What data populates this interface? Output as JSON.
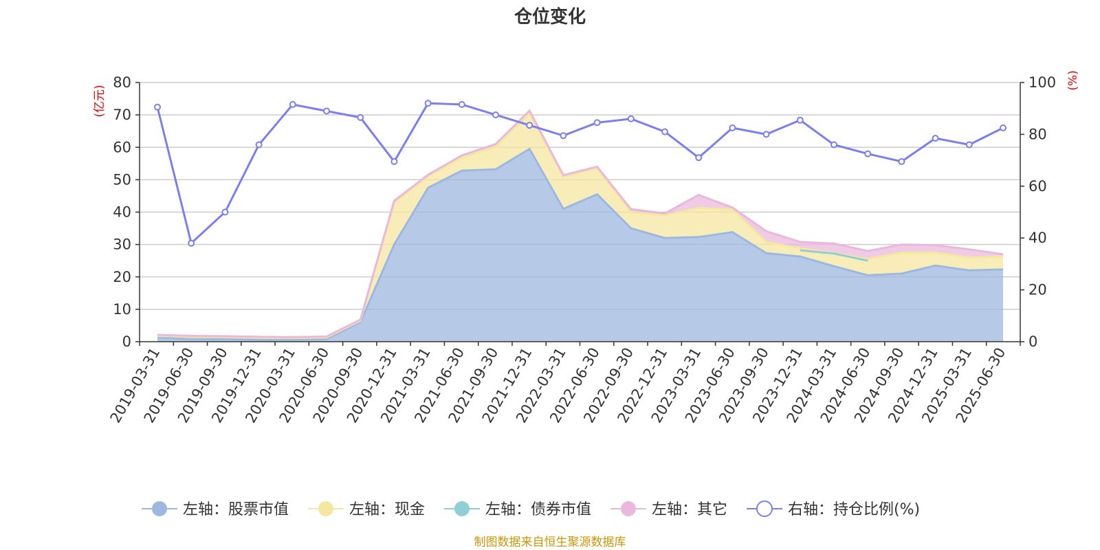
{
  "chart_data": {
    "type": "area",
    "title": "仓位变化",
    "x": [
      "2019-03-31",
      "2019-06-30",
      "2019-09-30",
      "2019-12-31",
      "2020-03-31",
      "2020-06-30",
      "2020-09-30",
      "2020-12-31",
      "2021-03-31",
      "2021-06-30",
      "2021-09-30",
      "2021-12-31",
      "2022-03-31",
      "2022-06-30",
      "2022-09-30",
      "2022-12-31",
      "2023-03-31",
      "2023-06-30",
      "2023-09-30",
      "2023-12-31",
      "2024-03-31",
      "2024-06-30",
      "2024-09-30",
      "2024-12-31",
      "2025-03-31",
      "2025-06-30"
    ],
    "left_axis": {
      "unit": "(亿元)",
      "ylim": [
        0,
        80
      ],
      "ticks": [
        "0",
        "10",
        "20",
        "30",
        "40",
        "50",
        "60",
        "70",
        "80"
      ]
    },
    "right_axis": {
      "unit": "(%)",
      "ylim": [
        0,
        100
      ],
      "ticks": [
        "0",
        "20",
        "40",
        "60",
        "80",
        "100"
      ]
    },
    "series": [
      {
        "name": "左轴：股票市值",
        "axis": "left",
        "stacked": true,
        "color": "#9db8e0",
        "values": [
          1.3,
          0.8,
          0.8,
          0.6,
          0.6,
          0.8,
          6.0,
          30.0,
          47.5,
          52.8,
          53.2,
          59.5,
          41.0,
          45.5,
          35.0,
          32.0,
          32.3,
          33.8,
          27.3,
          26.3,
          23.3,
          20.5,
          21.0,
          23.5,
          22.0,
          22.3
        ]
      },
      {
        "name": "左轴：现金",
        "axis": "left",
        "stacked": true,
        "color": "#f5e6a0",
        "values": [
          0.5,
          0.7,
          0.6,
          0.6,
          0.5,
          0.5,
          0.5,
          13.0,
          3.5,
          4.0,
          7.0,
          11.0,
          10.0,
          8.0,
          5.0,
          7.0,
          9.0,
          7.0,
          3.5,
          2.5,
          4.0,
          5.0,
          6.5,
          4.0,
          4.0,
          4.0
        ]
      },
      {
        "name": "左轴：债券市值",
        "axis": "left",
        "stacked": false,
        "color": "#8ecfd3",
        "values": [
          null,
          null,
          null,
          null,
          null,
          null,
          null,
          null,
          null,
          null,
          null,
          null,
          null,
          null,
          null,
          null,
          null,
          null,
          null,
          28.2,
          27.2,
          25.0,
          null,
          null,
          null,
          null
        ]
      },
      {
        "name": "左轴：其它",
        "axis": "left",
        "stacked": true,
        "color": "#e9b9dd",
        "values": [
          0.3,
          0.3,
          0.3,
          0.3,
          0.3,
          0.3,
          0.3,
          0.5,
          0.5,
          0.7,
          0.8,
          0.8,
          0.4,
          0.5,
          0.9,
          0.6,
          4.0,
          0.6,
          3.3,
          2.0,
          3.0,
          2.5,
          2.5,
          2.3,
          2.5,
          0.7
        ]
      },
      {
        "name": "右轴：持仓比例(%)",
        "axis": "right",
        "stacked": false,
        "color": "#7a7ef0",
        "values": [
          90.5,
          38.0,
          50.0,
          76.0,
          91.5,
          89.0,
          86.5,
          69.5,
          92.0,
          91.5,
          87.5,
          83.5,
          79.5,
          84.5,
          86.0,
          81.0,
          71.0,
          82.5,
          80.0,
          85.5,
          76.0,
          72.5,
          69.5,
          78.5,
          76.0,
          82.5
        ]
      }
    ],
    "legend_position": "bottom",
    "grid": true
  },
  "source_note": "制图数据来自恒生聚源数据库"
}
